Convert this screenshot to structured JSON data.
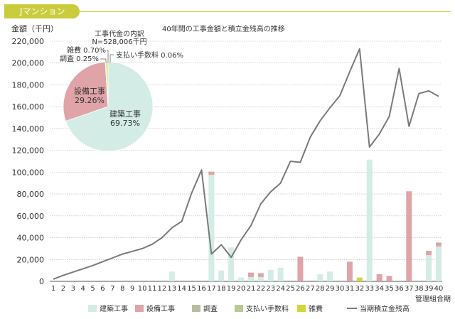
{
  "header": {
    "tag_label": "Jマンション",
    "accent_color": "#c9cc3b"
  },
  "colors": {
    "construction": "#d3ece6",
    "equipment": "#e0a3a8",
    "survey": "#b9bd9c",
    "fees": "#b7ca96",
    "misc": "#d4d53c",
    "line": "#7a7a7a",
    "grid": "#b5b5b5"
  },
  "chart_data": [
    {
      "type": "bar",
      "title": "40年間の工事金額と積立金残高の推移",
      "ylabel": "金額（千円）",
      "xlabel": "管理組合期",
      "ylim": [
        0,
        220000
      ],
      "y_ticks": [
        "0",
        "20,000",
        "40,000",
        "60,000",
        "80,000",
        "100,000",
        "120,000",
        "140,000",
        "160,000",
        "180,000",
        "200,000",
        "220,000"
      ],
      "categories": [
        "1",
        "2",
        "3",
        "4",
        "5",
        "6",
        "7",
        "8",
        "9",
        "10",
        "11",
        "12",
        "13",
        "14",
        "15",
        "16",
        "17",
        "18",
        "19",
        "20",
        "21",
        "22",
        "23",
        "24",
        "25",
        "26",
        "27",
        "28",
        "29",
        "30",
        "31",
        "32",
        "33",
        "34",
        "35",
        "36",
        "37",
        "38",
        "39",
        "40"
      ],
      "legend": [
        "建築工事",
        "設備工事",
        "調査",
        "支払い手数料",
        "雑費",
        "当期積立金残高"
      ],
      "legend_position": "bottom",
      "grid": true,
      "stacked": true,
      "series": [
        {
          "name": "建築工事",
          "values": [
            0,
            0,
            0,
            0,
            0,
            0,
            0,
            0,
            0,
            0,
            0,
            0,
            9000,
            0,
            0,
            0,
            97500,
            10000,
            31000,
            3500,
            4000,
            4000,
            10500,
            12500,
            0,
            0,
            0,
            6500,
            9000,
            0,
            0,
            0,
            111500,
            0,
            0,
            0,
            0,
            0,
            24000,
            32000
          ]
        },
        {
          "name": "設備工事",
          "values": [
            0,
            0,
            0,
            0,
            0,
            0,
            0,
            0,
            0,
            0,
            0,
            0,
            0,
            0,
            0,
            0,
            3000,
            0,
            0,
            0,
            4000,
            3500,
            0,
            0,
            0,
            22500,
            0,
            0,
            0,
            0,
            18000,
            0,
            0,
            6500,
            5000,
            0,
            82500,
            0,
            4000,
            3500
          ]
        },
        {
          "name": "調査",
          "values": [
            0,
            0,
            0,
            0,
            0,
            0,
            0,
            0,
            0,
            0,
            0,
            0,
            0,
            0,
            0,
            0,
            0,
            0,
            0,
            0,
            0,
            0,
            0,
            0,
            0,
            0,
            0,
            0,
            0,
            0,
            0,
            0,
            0,
            0,
            0,
            0,
            0,
            0,
            0,
            0
          ]
        },
        {
          "name": "支払い手数料",
          "values": [
            0,
            0,
            0,
            0,
            0,
            0,
            0,
            0,
            0,
            0,
            0,
            0,
            0,
            0,
            0,
            0,
            0,
            0,
            0,
            0,
            0,
            0,
            0,
            0,
            0,
            0,
            0,
            0,
            0,
            0,
            0,
            0,
            0,
            0,
            0,
            0,
            0,
            0,
            0,
            0
          ]
        },
        {
          "name": "雑費",
          "values": [
            0,
            0,
            0,
            0,
            0,
            0,
            0,
            0,
            0,
            0,
            0,
            0,
            0,
            0,
            0,
            0,
            0,
            0,
            0,
            0,
            0,
            0,
            0,
            0,
            0,
            0,
            0,
            0,
            0,
            0,
            0,
            3500,
            0,
            0,
            0,
            0,
            0,
            0,
            0,
            0
          ]
        }
      ],
      "line_series": {
        "name": "当期積立金残高",
        "values": [
          2000,
          5500,
          8500,
          11500,
          14500,
          18000,
          21500,
          25000,
          27500,
          30000,
          34000,
          40000,
          49000,
          55000,
          81000,
          102000,
          25000,
          33500,
          22000,
          38000,
          51000,
          71000,
          82000,
          90000,
          110000,
          109000,
          132000,
          147000,
          159000,
          170000,
          192000,
          213000,
          123000,
          135000,
          151000,
          195000,
          142000,
          172000,
          174500,
          169500
        ]
      }
    },
    {
      "type": "pie",
      "title": "工事代金の内訳",
      "subtitle": "N=528,006千円",
      "slices": [
        {
          "label": "建築工事",
          "value": 69.73,
          "value_label": "69.73%"
        },
        {
          "label": "設備工事",
          "value": 29.26,
          "value_label": "29.26%"
        },
        {
          "label": "調査",
          "value": 0.25,
          "value_label": "0.25%"
        },
        {
          "label": "雑費",
          "value": 0.7,
          "value_label": "0.70%"
        },
        {
          "label": "支払い手数料",
          "value": 0.06,
          "value_label": "0.06%"
        }
      ]
    }
  ]
}
